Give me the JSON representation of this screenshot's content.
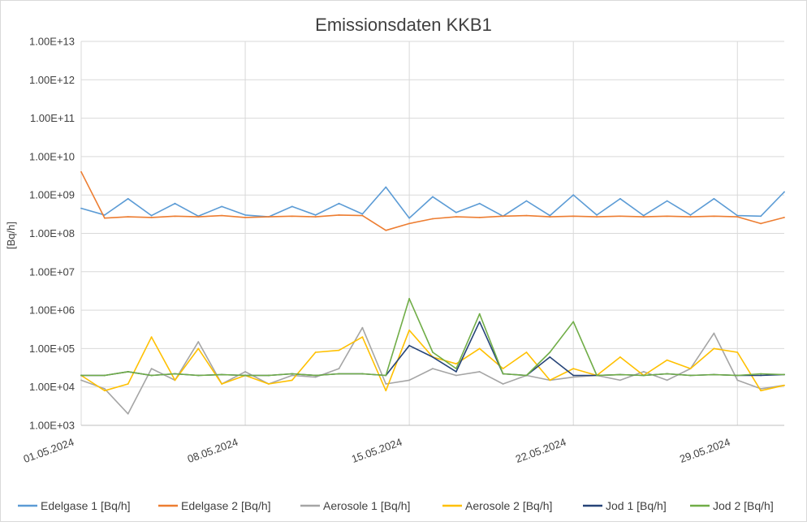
{
  "chart_data": {
    "type": "line",
    "title": "Emissionsdaten KKB1",
    "xlabel": "",
    "ylabel": "[Bq/h]",
    "yscale": "log",
    "ylim": [
      1000,
      10000000000000
    ],
    "yticks": [
      "1.00E+03",
      "1.00E+04",
      "1.00E+05",
      "1.00E+06",
      "1.00E+07",
      "1.00E+08",
      "1.00E+09",
      "1.00E+10",
      "1.00E+11",
      "1.00E+12",
      "1.00E+13"
    ],
    "xlim": [
      "01.05.2024",
      "31.05.2024"
    ],
    "xticks": [
      "01.05.2024",
      "08.05.2024",
      "15.05.2024",
      "22.05.2024",
      "29.05.2024"
    ],
    "grid": true,
    "legend_position": "bottom",
    "series": [
      {
        "name": "Edelgase 1 [Bq/h]",
        "color": "#5b9bd5",
        "x": [
          "01.05.2024",
          "02.05.2024",
          "03.05.2024",
          "04.05.2024",
          "05.05.2024",
          "06.05.2024",
          "07.05.2024",
          "08.05.2024",
          "09.05.2024",
          "10.05.2024",
          "11.05.2024",
          "12.05.2024",
          "13.05.2024",
          "14.05.2024",
          "15.05.2024",
          "16.05.2024",
          "17.05.2024",
          "18.05.2024",
          "19.05.2024",
          "20.05.2024",
          "21.05.2024",
          "22.05.2024",
          "23.05.2024",
          "24.05.2024",
          "25.05.2024",
          "26.05.2024",
          "27.05.2024",
          "28.05.2024",
          "29.05.2024",
          "30.05.2024",
          "31.05.2024"
        ],
        "values": [
          450000000,
          300000000,
          800000000,
          290000000,
          600000000,
          280000000,
          500000000,
          300000000,
          270000000,
          500000000,
          300000000,
          600000000,
          320000000,
          1600000000,
          250000000,
          900000000,
          350000000,
          600000000,
          280000000,
          700000000,
          290000000,
          1000000000,
          300000000,
          800000000,
          290000000,
          700000000,
          300000000,
          800000000,
          290000000,
          280000000,
          1200000000
        ]
      },
      {
        "name": "Edelgase 2 [Bq/h]",
        "color": "#ed7d31",
        "x": [
          "01.05.2024",
          "02.05.2024",
          "03.05.2024",
          "04.05.2024",
          "05.05.2024",
          "06.05.2024",
          "07.05.2024",
          "08.05.2024",
          "09.05.2024",
          "10.05.2024",
          "11.05.2024",
          "12.05.2024",
          "13.05.2024",
          "14.05.2024",
          "15.05.2024",
          "16.05.2024",
          "17.05.2024",
          "18.05.2024",
          "19.05.2024",
          "20.05.2024",
          "21.05.2024",
          "22.05.2024",
          "23.05.2024",
          "24.05.2024",
          "25.05.2024",
          "26.05.2024",
          "27.05.2024",
          "28.05.2024",
          "29.05.2024",
          "30.05.2024",
          "31.05.2024"
        ],
        "values": [
          4000000000,
          250000000,
          270000000,
          260000000,
          280000000,
          270000000,
          290000000,
          260000000,
          270000000,
          280000000,
          270000000,
          300000000,
          290000000,
          120000000,
          180000000,
          240000000,
          270000000,
          260000000,
          280000000,
          290000000,
          270000000,
          280000000,
          270000000,
          280000000,
          270000000,
          280000000,
          270000000,
          280000000,
          270000000,
          180000000,
          260000000
        ]
      },
      {
        "name": "Aerosole 1 [Bq/h]",
        "color": "#a5a5a5",
        "x": [
          "01.05.2024",
          "02.05.2024",
          "03.05.2024",
          "04.05.2024",
          "05.05.2024",
          "06.05.2024",
          "07.05.2024",
          "08.05.2024",
          "09.05.2024",
          "10.05.2024",
          "11.05.2024",
          "12.05.2024",
          "13.05.2024",
          "14.05.2024",
          "15.05.2024",
          "16.05.2024",
          "17.05.2024",
          "18.05.2024",
          "19.05.2024",
          "20.05.2024",
          "21.05.2024",
          "22.05.2024",
          "23.05.2024",
          "24.05.2024",
          "25.05.2024",
          "26.05.2024",
          "27.05.2024",
          "28.05.2024",
          "29.05.2024",
          "30.05.2024",
          "31.05.2024"
        ],
        "values": [
          15000,
          9000,
          2000,
          30000,
          15000,
          150000,
          12000,
          25000,
          12000,
          20000,
          18000,
          30000,
          350000,
          12000,
          15000,
          30000,
          20000,
          25000,
          12000,
          20000,
          15000,
          18000,
          20000,
          15000,
          25000,
          15000,
          30000,
          250000,
          15000,
          9000,
          11000
        ]
      },
      {
        "name": "Aerosole 2 [Bq/h]",
        "color": "#ffc000",
        "x": [
          "01.05.2024",
          "02.05.2024",
          "03.05.2024",
          "04.05.2024",
          "05.05.2024",
          "06.05.2024",
          "07.05.2024",
          "08.05.2024",
          "09.05.2024",
          "10.05.2024",
          "11.05.2024",
          "12.05.2024",
          "13.05.2024",
          "14.05.2024",
          "15.05.2024",
          "16.05.2024",
          "17.05.2024",
          "18.05.2024",
          "19.05.2024",
          "20.05.2024",
          "21.05.2024",
          "22.05.2024",
          "23.05.2024",
          "24.05.2024",
          "25.05.2024",
          "26.05.2024",
          "27.05.2024",
          "28.05.2024",
          "29.05.2024",
          "30.05.2024",
          "31.05.2024"
        ],
        "values": [
          20000,
          8000,
          12000,
          200000,
          15000,
          100000,
          12000,
          20000,
          12000,
          15000,
          80000,
          90000,
          200000,
          8000,
          300000,
          60000,
          40000,
          100000,
          30000,
          80000,
          15000,
          30000,
          20000,
          60000,
          20000,
          50000,
          30000,
          100000,
          80000,
          8000,
          11000
        ]
      },
      {
        "name": "Jod 1 [Bq/h]",
        "color": "#264478",
        "x": [
          "01.05.2024",
          "02.05.2024",
          "03.05.2024",
          "04.05.2024",
          "05.05.2024",
          "06.05.2024",
          "07.05.2024",
          "08.05.2024",
          "09.05.2024",
          "10.05.2024",
          "11.05.2024",
          "12.05.2024",
          "13.05.2024",
          "14.05.2024",
          "15.05.2024",
          "16.05.2024",
          "17.05.2024",
          "18.05.2024",
          "19.05.2024",
          "20.05.2024",
          "21.05.2024",
          "22.05.2024",
          "23.05.2024",
          "24.05.2024",
          "25.05.2024",
          "26.05.2024",
          "27.05.2024",
          "28.05.2024",
          "29.05.2024",
          "30.05.2024",
          "31.05.2024"
        ],
        "values": [
          20000,
          20000,
          25000,
          20000,
          22000,
          20000,
          21000,
          20000,
          20000,
          22000,
          20000,
          22000,
          22000,
          20000,
          120000,
          60000,
          25000,
          500000,
          22000,
          20000,
          60000,
          20000,
          20000,
          21000,
          20000,
          22000,
          20000,
          21000,
          20000,
          20000,
          21000
        ]
      },
      {
        "name": "Jod 2 [Bq/h]",
        "color": "#70ad47",
        "x": [
          "01.05.2024",
          "02.05.2024",
          "03.05.2024",
          "04.05.2024",
          "05.05.2024",
          "06.05.2024",
          "07.05.2024",
          "08.05.2024",
          "09.05.2024",
          "10.05.2024",
          "11.05.2024",
          "12.05.2024",
          "13.05.2024",
          "14.05.2024",
          "15.05.2024",
          "16.05.2024",
          "17.05.2024",
          "18.05.2024",
          "19.05.2024",
          "20.05.2024",
          "21.05.2024",
          "22.05.2024",
          "23.05.2024",
          "24.05.2024",
          "25.05.2024",
          "26.05.2024",
          "27.05.2024",
          "28.05.2024",
          "29.05.2024",
          "30.05.2024",
          "31.05.2024"
        ],
        "values": [
          20000,
          20000,
          25000,
          20000,
          22000,
          20000,
          21000,
          20000,
          20000,
          22000,
          20000,
          22000,
          22000,
          20000,
          2000000,
          80000,
          30000,
          800000,
          22000,
          20000,
          80000,
          500000,
          20000,
          21000,
          20000,
          22000,
          20000,
          21000,
          20000,
          22000,
          21000
        ]
      }
    ]
  }
}
